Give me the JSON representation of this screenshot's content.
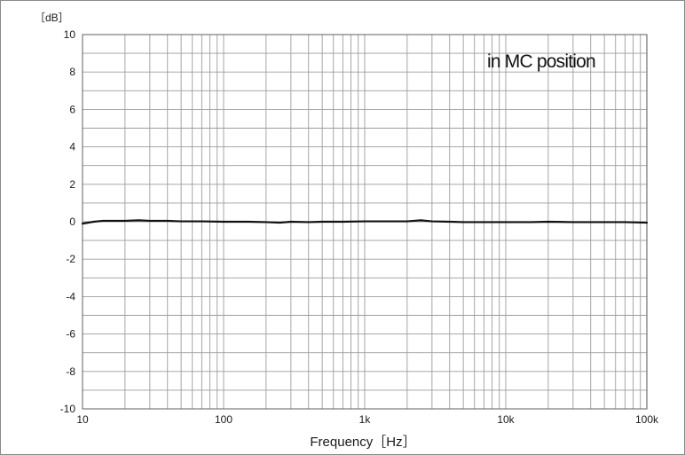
{
  "chart_data": {
    "type": "line",
    "title": "",
    "xlabel": "Frequency［Hz］",
    "ylabel": "［dB］",
    "x_scale": "log",
    "xlim": [
      10,
      100000
    ],
    "ylim": [
      -10,
      10
    ],
    "grid": true,
    "legend": "none",
    "annotation": "in MC position",
    "x_ticks": [
      10,
      100,
      1000,
      10000,
      100000
    ],
    "x_tick_labels": [
      "10",
      "100",
      "1k",
      "10k",
      "100k"
    ],
    "y_ticks": [
      10,
      8,
      6,
      4,
      2,
      0,
      -2,
      -4,
      -6,
      -8,
      -10
    ],
    "y_tick_labels": [
      "10",
      "8",
      "6",
      "4",
      "2",
      "0",
      "-2",
      "-4",
      "-6",
      "-8",
      "-10"
    ],
    "series": [
      {
        "x": [
          10,
          12,
          14,
          17,
          20,
          25,
          30,
          40,
          50,
          70,
          100,
          150,
          200,
          250,
          300,
          400,
          500,
          700,
          1000,
          1500,
          2000,
          2500,
          3000,
          4000,
          5000,
          7000,
          10000,
          15000,
          20000,
          30000,
          50000,
          70000,
          100000
        ],
        "y": [
          -0.1,
          0.0,
          0.05,
          0.05,
          0.05,
          0.08,
          0.05,
          0.05,
          0.02,
          0.02,
          0.0,
          0.0,
          -0.02,
          -0.05,
          0.0,
          -0.02,
          0.0,
          0.0,
          0.02,
          0.02,
          0.02,
          0.08,
          0.02,
          0.0,
          -0.02,
          -0.02,
          -0.02,
          -0.02,
          0.0,
          -0.02,
          -0.02,
          -0.02,
          -0.05
        ],
        "color": "#111111"
      }
    ],
    "colors": {
      "grid": "#9c9c9c",
      "axes": "#6e6e6e",
      "line": "#111111"
    }
  }
}
